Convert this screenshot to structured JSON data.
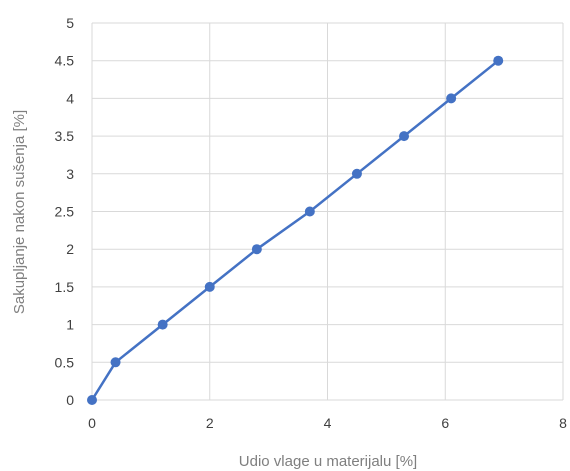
{
  "chart_data": {
    "type": "scatter",
    "xlabel": "Udio vlage u materijalu [%]",
    "ylabel": "Sakupljanje nakon sušenja [%]",
    "xlim": [
      0,
      8
    ],
    "ylim": [
      0,
      5
    ],
    "x_ticks": [
      "0",
      "2",
      "4",
      "6",
      "8"
    ],
    "y_ticks": [
      "0",
      "0.5",
      "1",
      "1.5",
      "2",
      "2.5",
      "3",
      "3.5",
      "4",
      "4.5",
      "5"
    ],
    "grid": true,
    "legend": "none",
    "series_color": "#4472c4",
    "series": [
      {
        "x": [
          0,
          0.4,
          1.2,
          2.0,
          2.8,
          3.7,
          4.5,
          5.3,
          6.1,
          6.9
        ],
        "y": [
          0,
          0.5,
          1.0,
          1.5,
          2.0,
          2.5,
          3.0,
          3.5,
          4.0,
          4.5
        ]
      }
    ]
  }
}
